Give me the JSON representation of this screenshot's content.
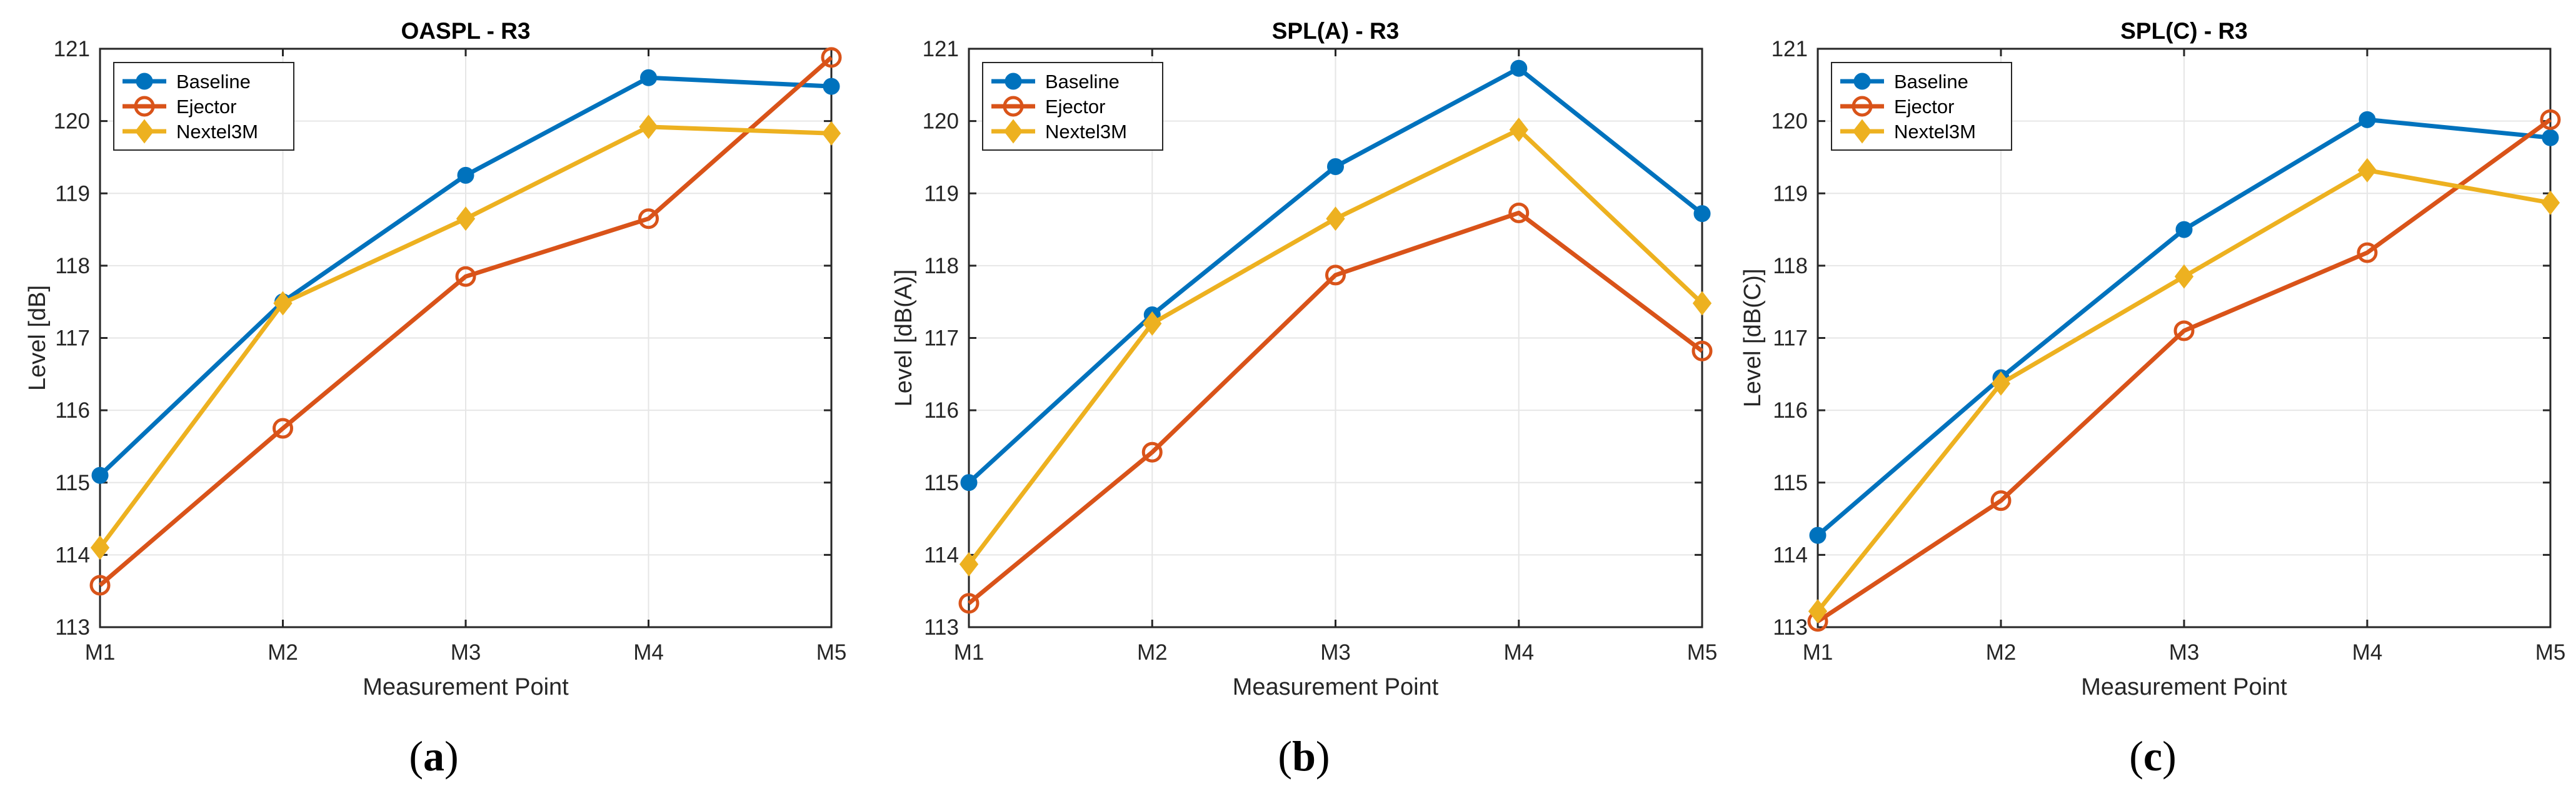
{
  "colors": {
    "baseline": "#0072BD",
    "ejector": "#D95319",
    "nextel": "#EDB120",
    "grid": "#e6e6e6",
    "axis": "#262626"
  },
  "captions": {
    "a": "a",
    "b": "b",
    "c": "c"
  },
  "chart_data": [
    {
      "type": "line",
      "title": "OASPL - R3",
      "xlabel": "Measurement Point",
      "ylabel": "Level [dB]",
      "categories": [
        "M1",
        "M2",
        "M3",
        "M4",
        "M5"
      ],
      "ylim": [
        113,
        121
      ],
      "yticks": [
        113,
        114,
        115,
        116,
        117,
        118,
        119,
        120,
        121
      ],
      "grid": true,
      "legend": "top-left",
      "series": [
        {
          "name": "Baseline",
          "marker": "dot",
          "values": [
            115.1,
            117.5,
            119.25,
            120.6,
            120.48
          ]
        },
        {
          "name": "Ejector",
          "marker": "circle",
          "values": [
            113.58,
            115.75,
            117.85,
            118.65,
            120.88
          ]
        },
        {
          "name": "Nextel3M",
          "marker": "diamond",
          "values": [
            114.1,
            117.48,
            118.65,
            119.92,
            119.83
          ]
        }
      ]
    },
    {
      "type": "line",
      "title": "SPL(A) - R3",
      "xlabel": "Measurement Point",
      "ylabel": "Level [dB(A)]",
      "categories": [
        "M1",
        "M2",
        "M3",
        "M4",
        "M5"
      ],
      "ylim": [
        113,
        121
      ],
      "yticks": [
        113,
        114,
        115,
        116,
        117,
        118,
        119,
        120,
        121
      ],
      "grid": true,
      "legend": "top-left",
      "series": [
        {
          "name": "Baseline",
          "marker": "dot",
          "values": [
            115.0,
            117.32,
            119.37,
            120.73,
            118.72
          ]
        },
        {
          "name": "Ejector",
          "marker": "circle",
          "values": [
            113.33,
            115.42,
            117.87,
            118.73,
            116.82
          ]
        },
        {
          "name": "Nextel3M",
          "marker": "diamond",
          "values": [
            113.87,
            117.2,
            118.65,
            119.88,
            117.48
          ]
        }
      ]
    },
    {
      "type": "line",
      "title": "SPL(C) - R3",
      "xlabel": "Measurement Point",
      "ylabel": "Level [dB(C)]",
      "categories": [
        "M1",
        "M2",
        "M3",
        "M4",
        "M5"
      ],
      "ylim": [
        113,
        121
      ],
      "yticks": [
        113,
        114,
        115,
        116,
        117,
        118,
        119,
        120,
        121
      ],
      "grid": true,
      "legend": "top-left",
      "series": [
        {
          "name": "Baseline",
          "marker": "dot",
          "values": [
            114.27,
            116.45,
            118.5,
            120.02,
            119.77
          ]
        },
        {
          "name": "Ejector",
          "marker": "circle",
          "values": [
            113.08,
            114.75,
            117.1,
            118.18,
            120.02
          ]
        },
        {
          "name": "Nextel3M",
          "marker": "diamond",
          "values": [
            113.22,
            116.37,
            117.85,
            119.32,
            118.87
          ]
        }
      ]
    }
  ]
}
